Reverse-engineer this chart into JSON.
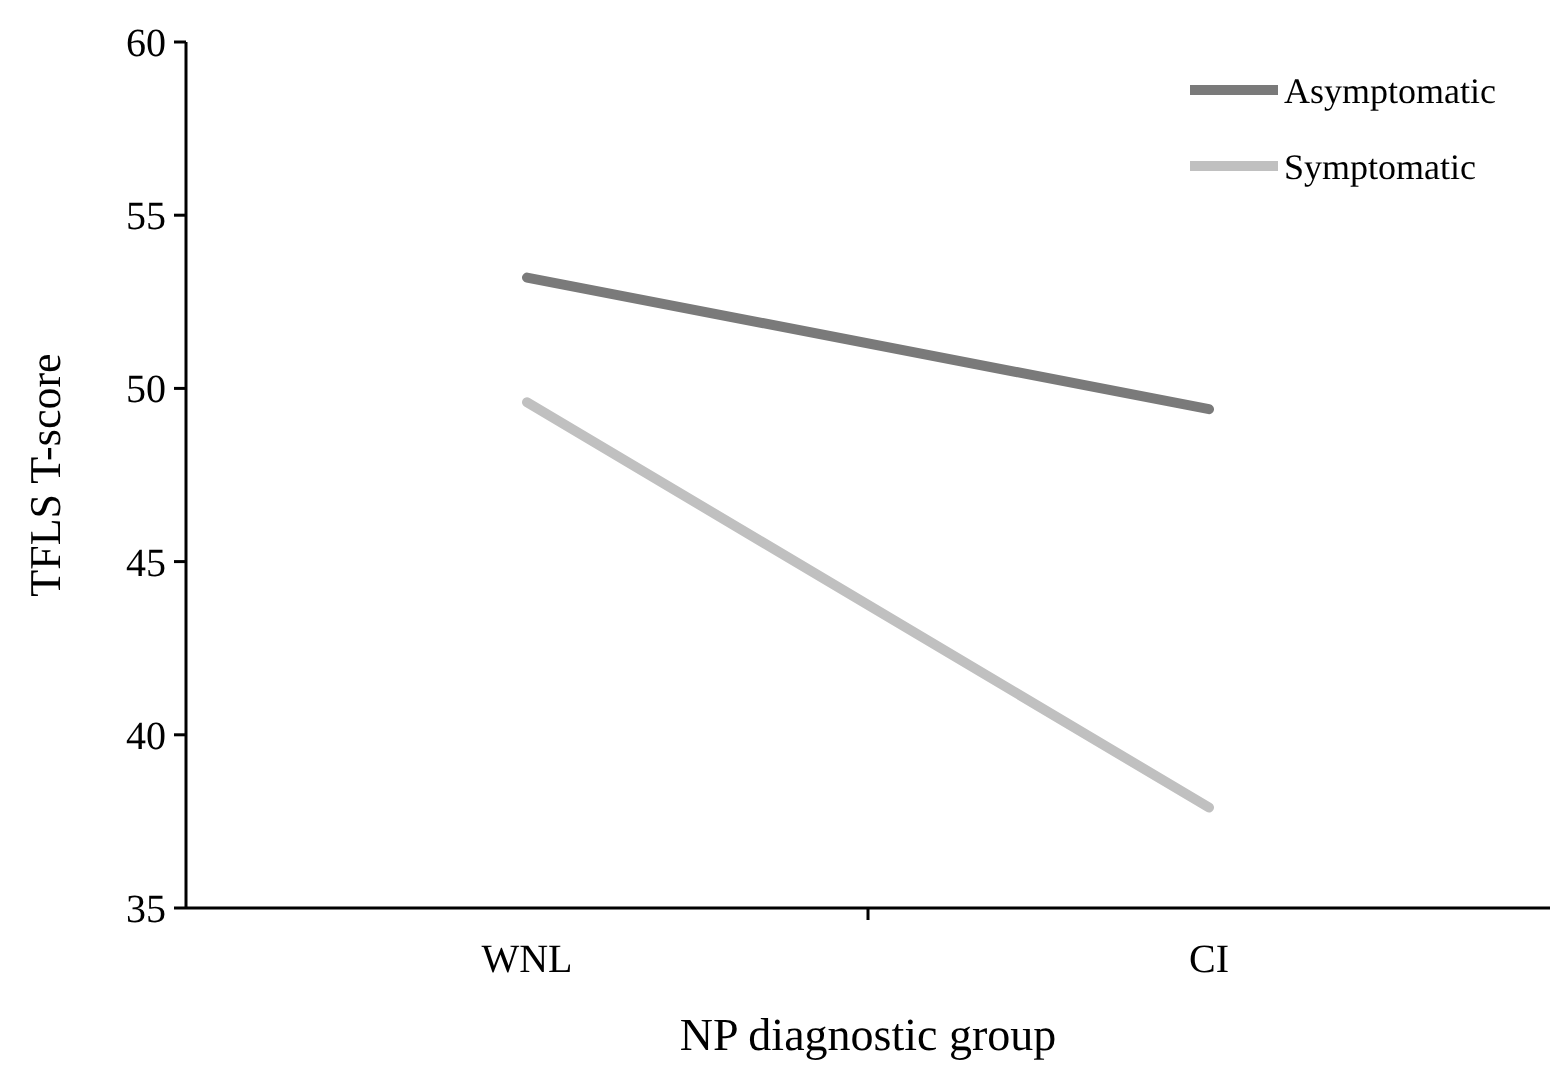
{
  "chart_data": {
    "type": "line",
    "xlabel": "NP diagnostic group",
    "ylabel": "TFLS T-score",
    "categories": [
      "WNL",
      "CI"
    ],
    "series": [
      {
        "name": "Asymptomatic",
        "color": "#7a7a7a",
        "values": [
          53.2,
          49.4
        ]
      },
      {
        "name": "Symptomatic",
        "color": "#c0c0c0",
        "values": [
          49.6,
          37.9
        ]
      }
    ],
    "ylim": [
      35,
      60
    ],
    "yticks": [
      35,
      40,
      45,
      50,
      55,
      60
    ],
    "grid": false,
    "legend": "top right",
    "marker": "none",
    "line_style": "solid"
  }
}
